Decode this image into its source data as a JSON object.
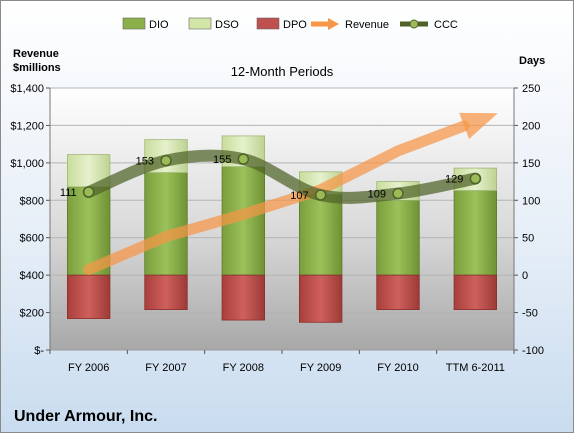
{
  "chart_data": {
    "type": "bar",
    "title": "12-Month Periods",
    "company": "Under Armour, Inc.",
    "categories": [
      "FY 2006",
      "FY 2007",
      "FY 2008",
      "FY 2009",
      "FY 2010",
      "TTM 6-2011"
    ],
    "left_axis": {
      "label_line1": "Revenue",
      "label_line2": "$millions",
      "range": [
        0,
        1400
      ],
      "ticks": [
        0,
        200,
        400,
        600,
        800,
        1000,
        1200,
        1400
      ],
      "tick_labels": [
        "$-",
        "$200",
        "$400",
        "$600",
        "$800",
        "$1,000",
        "$1,200",
        "$1,400"
      ]
    },
    "right_axis": {
      "label": "Days",
      "range": [
        -100,
        250
      ],
      "ticks": [
        -100,
        -50,
        0,
        50,
        100,
        150,
        200,
        250
      ],
      "tick_labels": [
        "-100",
        "-50",
        "0",
        "50",
        "100",
        "150",
        "200",
        "250"
      ]
    },
    "legend": {
      "position": "top",
      "items": [
        {
          "name": "DIO",
          "marker": "bar",
          "color": "#8bb04a"
        },
        {
          "name": "DSO",
          "marker": "bar",
          "color": "#d3e6a9"
        },
        {
          "name": "DPO",
          "marker": "bar",
          "color": "#c0504d"
        },
        {
          "name": "Revenue",
          "marker": "arrow",
          "color": "#f79646"
        },
        {
          "name": "CCC",
          "marker": "line",
          "color": "#4f6228"
        }
      ]
    },
    "series": [
      {
        "name": "DIO",
        "axis": "right",
        "values": [
          118,
          137,
          145,
          108,
          100,
          113
        ]
      },
      {
        "name": "DSO",
        "axis": "right",
        "values": [
          43,
          44,
          41,
          30,
          25,
          30
        ]
      },
      {
        "name": "DPO",
        "axis": "right",
        "values": [
          -58,
          -46,
          -60,
          -63,
          -46,
          -46
        ]
      },
      {
        "name": "Revenue",
        "axis": "left",
        "values": [
          430,
          606,
          725,
          856,
          1064,
          1220
        ]
      },
      {
        "name": "CCC",
        "axis": "right",
        "values": [
          111,
          153,
          155,
          107,
          109,
          129
        ]
      }
    ],
    "ccc_labels": [
      "111",
      "153",
      "155",
      "107",
      "109",
      "129"
    ],
    "grid": true
  }
}
